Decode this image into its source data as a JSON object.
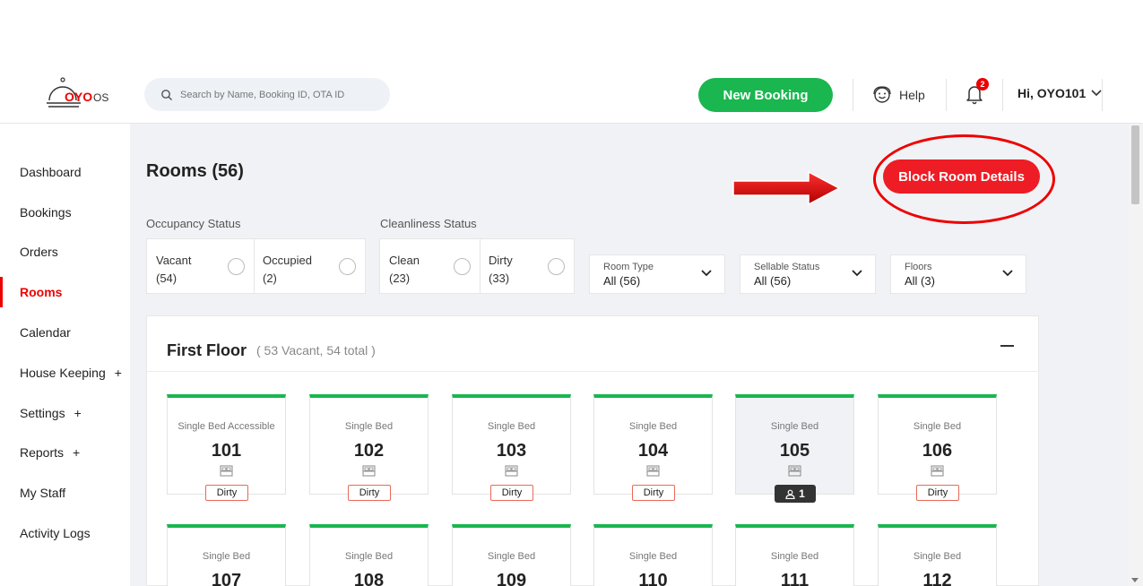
{
  "header": {
    "logo_text": "OYO",
    "logo_suffix": "OS",
    "search_placeholder": "Search by Name, Booking ID, OTA ID",
    "new_booking_label": "New Booking",
    "help_label": "Help",
    "notification_count": "2",
    "user_greeting": "Hi, OYO101"
  },
  "sidebar": {
    "items": [
      {
        "label": "Dashboard",
        "expandable": false
      },
      {
        "label": "Bookings",
        "expandable": false
      },
      {
        "label": "Orders",
        "expandable": false
      },
      {
        "label": "Rooms",
        "expandable": false,
        "active": true
      },
      {
        "label": "Calendar",
        "expandable": false
      },
      {
        "label": "House Keeping",
        "expandable": true
      },
      {
        "label": "Settings",
        "expandable": true
      },
      {
        "label": "Reports",
        "expandable": true
      },
      {
        "label": "My Staff",
        "expandable": false
      },
      {
        "label": "Activity Logs",
        "expandable": false
      }
    ],
    "expand_symbol": "+"
  },
  "main": {
    "title": "Rooms (56)",
    "block_room_label": "Block Room Details",
    "occupancy": {
      "label": "Occupancy Status",
      "options": [
        {
          "name": "Vacant",
          "count": "(54)"
        },
        {
          "name": "Occupied",
          "count": "(2)"
        }
      ]
    },
    "cleanliness": {
      "label": "Cleanliness Status",
      "options": [
        {
          "name": "Clean",
          "count": "(23)"
        },
        {
          "name": "Dirty",
          "count": "(33)"
        }
      ]
    },
    "filters": [
      {
        "label": "Room Type",
        "value": "All (56)"
      },
      {
        "label": "Sellable Status",
        "value": "All (56)"
      },
      {
        "label": "Floors",
        "value": "All (3)"
      }
    ],
    "floor": {
      "title": "First Floor",
      "summary": "( 53 Vacant, 54 total )",
      "rooms": [
        {
          "type": "Single Bed Accessible",
          "number": "101",
          "status": "Dirty"
        },
        {
          "type": "Single Bed",
          "number": "102",
          "status": "Dirty"
        },
        {
          "type": "Single Bed",
          "number": "103",
          "status": "Dirty"
        },
        {
          "type": "Single Bed",
          "number": "104",
          "status": "Dirty"
        },
        {
          "type": "Single Bed",
          "number": "105",
          "status": "",
          "occupants": "1"
        },
        {
          "type": "Single Bed",
          "number": "106",
          "status": "Dirty"
        },
        {
          "type": "Single Bed",
          "number": "107",
          "status": ""
        },
        {
          "type": "Single Bed",
          "number": "108",
          "status": ""
        },
        {
          "type": "Single Bed",
          "number": "109",
          "status": ""
        },
        {
          "type": "Single Bed",
          "number": "110",
          "status": ""
        },
        {
          "type": "Single Bed",
          "number": "111",
          "status": ""
        },
        {
          "type": "Single Bed",
          "number": "112",
          "status": ""
        }
      ]
    }
  },
  "colors": {
    "brand_red": "#ee1c25",
    "green": "#1ab64f"
  }
}
